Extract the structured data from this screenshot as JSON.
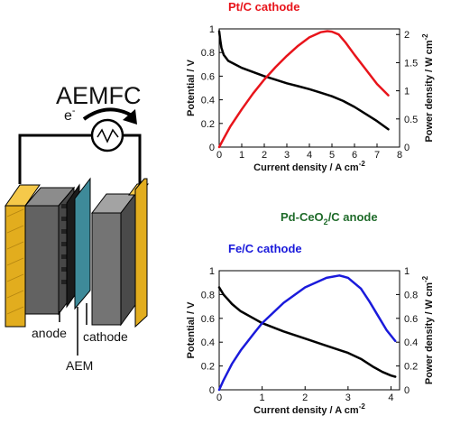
{
  "diagram": {
    "title": "AEMFC",
    "electron_label": "e",
    "electron_sup": "-",
    "labels": {
      "anode": "anode",
      "cathode": "cathode",
      "membrane": "AEM"
    }
  },
  "middle_label": {
    "text_main": "Pd-CeO",
    "sub": "2",
    "text_tail": "/C anode",
    "color": "#1f6b2a"
  },
  "chart_data": [
    {
      "type": "line",
      "title": "Pt/C cathode",
      "title_color": "#e8141b",
      "xlabel_main": "Current density / A cm",
      "xlabel_sup": "-2",
      "ylabel_left": "Potential / V",
      "ylabel_right_main": "Power density / W cm",
      "ylabel_right_sup": "-2",
      "xlim": [
        0,
        8
      ],
      "xticks": [
        0,
        1,
        2,
        3,
        4,
        5,
        6,
        7,
        8
      ],
      "ylim_left": [
        0,
        1
      ],
      "yticks_left": [
        "0",
        "0.2",
        "0.4",
        "0.6",
        "0.8",
        "1"
      ],
      "ylim_right": [
        0,
        2.1
      ],
      "yticks_right_values": [
        0,
        0.5,
        1,
        1.5,
        2
      ],
      "yticks_right": [
        "0",
        "0.5",
        "1",
        "1.5",
        "2"
      ],
      "series": [
        {
          "axis": "left",
          "color": "#000000",
          "x": [
            0,
            0.05,
            0.1,
            0.2,
            0.4,
            0.6,
            1.0,
            1.5,
            2.0,
            2.5,
            3.0,
            3.5,
            4.0,
            4.5,
            5.0,
            5.5,
            6.0,
            6.5,
            7.0,
            7.5
          ],
          "y": [
            0.98,
            0.9,
            0.84,
            0.78,
            0.73,
            0.71,
            0.67,
            0.635,
            0.6,
            0.57,
            0.54,
            0.515,
            0.49,
            0.46,
            0.43,
            0.39,
            0.34,
            0.28,
            0.22,
            0.15
          ]
        },
        {
          "axis": "right",
          "color": "#e8141b",
          "x": [
            0,
            0.2,
            0.5,
            1.0,
            1.5,
            2.0,
            2.5,
            3.0,
            3.5,
            4.0,
            4.5,
            4.8,
            5.0,
            5.3,
            5.6,
            6.0,
            6.5,
            7.0,
            7.5
          ],
          "y": [
            0,
            0.15,
            0.37,
            0.67,
            0.95,
            1.2,
            1.42,
            1.62,
            1.8,
            1.95,
            2.04,
            2.06,
            2.05,
            2.0,
            1.86,
            1.64,
            1.38,
            1.12,
            0.92
          ]
        }
      ]
    },
    {
      "type": "line",
      "title": "Fe/C cathode",
      "title_color": "#1a1adb",
      "xlabel_main": "Current density / A cm",
      "xlabel_sup": "-2",
      "ylabel_left": "Potential / V",
      "ylabel_right_main": "Power density / W cm",
      "ylabel_right_sup": "-2",
      "xlim": [
        0,
        4.2
      ],
      "xticks": [
        0,
        1,
        2,
        3,
        4
      ],
      "ylim_left": [
        0,
        1
      ],
      "yticks_left": [
        "0",
        "0.2",
        "0.4",
        "0.6",
        "0.8",
        "1"
      ],
      "ylim_right": [
        0,
        1
      ],
      "yticks_right_values": [
        0,
        0.2,
        0.4,
        0.6,
        0.8,
        1
      ],
      "yticks_right": [
        "0",
        "0.2",
        "0.4",
        "0.6",
        "0.8",
        "1"
      ],
      "series": [
        {
          "axis": "left",
          "color": "#000000",
          "x": [
            0,
            0.1,
            0.3,
            0.5,
            0.8,
            1.0,
            1.5,
            2.0,
            2.5,
            3.0,
            3.3,
            3.6,
            3.8,
            4.0,
            4.1
          ],
          "y": [
            0.86,
            0.8,
            0.72,
            0.66,
            0.6,
            0.56,
            0.49,
            0.43,
            0.37,
            0.31,
            0.26,
            0.19,
            0.15,
            0.12,
            0.11
          ]
        },
        {
          "axis": "right",
          "color": "#1a1adb",
          "x": [
            0,
            0.1,
            0.3,
            0.5,
            0.8,
            1.0,
            1.5,
            2.0,
            2.5,
            2.8,
            3.0,
            3.3,
            3.5,
            3.7,
            3.9,
            4.1
          ],
          "y": [
            0,
            0.08,
            0.22,
            0.33,
            0.47,
            0.56,
            0.73,
            0.86,
            0.94,
            0.96,
            0.94,
            0.85,
            0.74,
            0.62,
            0.5,
            0.41
          ]
        }
      ]
    }
  ]
}
